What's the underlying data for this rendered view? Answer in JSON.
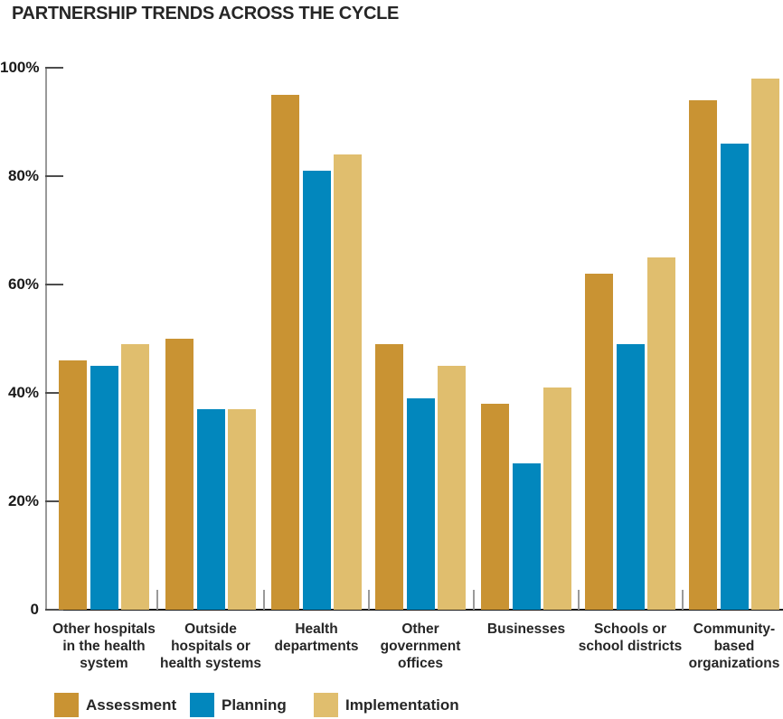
{
  "title": "PARTNERSHIP TRENDS ACROSS THE CYCLE",
  "chart_data": {
    "type": "bar",
    "title": "PARTNERSHIP TRENDS ACROSS THE CYCLE",
    "categories": [
      [
        "Other hospitals",
        "in the health",
        "system"
      ],
      [
        "Outside",
        "hospitals or",
        "health systems"
      ],
      [
        "Health",
        "departments"
      ],
      [
        "Other",
        "government",
        "offices"
      ],
      [
        "Businesses"
      ],
      [
        "Schools or",
        "school districts"
      ],
      [
        "Community-",
        "based",
        "organizations"
      ]
    ],
    "series": [
      {
        "name": "Assessment",
        "color": "#C99333",
        "values": [
          46,
          50,
          95,
          49,
          38,
          62,
          94
        ]
      },
      {
        "name": "Planning",
        "color": "#0287BD",
        "values": [
          45,
          37,
          81,
          39,
          27,
          49,
          86
        ]
      },
      {
        "name": "Implementation",
        "color": "#E0BE6E",
        "values": [
          49,
          37,
          84,
          45,
          41,
          65,
          98
        ]
      }
    ],
    "yticks": [
      {
        "label": "100%",
        "value": 100
      },
      {
        "label": "80%",
        "value": 80
      },
      {
        "label": "60%",
        "value": 60
      },
      {
        "label": "40%",
        "value": 40
      },
      {
        "label": "20%",
        "value": 20
      },
      {
        "label": "0",
        "value": 0
      }
    ],
    "ylim": [
      0,
      100
    ],
    "grid": false,
    "legend_position": "bottom",
    "legend": [
      "Assessment",
      "Planning",
      "Implementation"
    ]
  },
  "colors": {
    "assessment": "#C99333",
    "planning": "#0287BD",
    "implementation": "#E0BE6E",
    "text": "#262626",
    "axis_gray": "#999999",
    "tick_dark": "#4d4d4d",
    "baseline_black": "#1a1a1a"
  }
}
